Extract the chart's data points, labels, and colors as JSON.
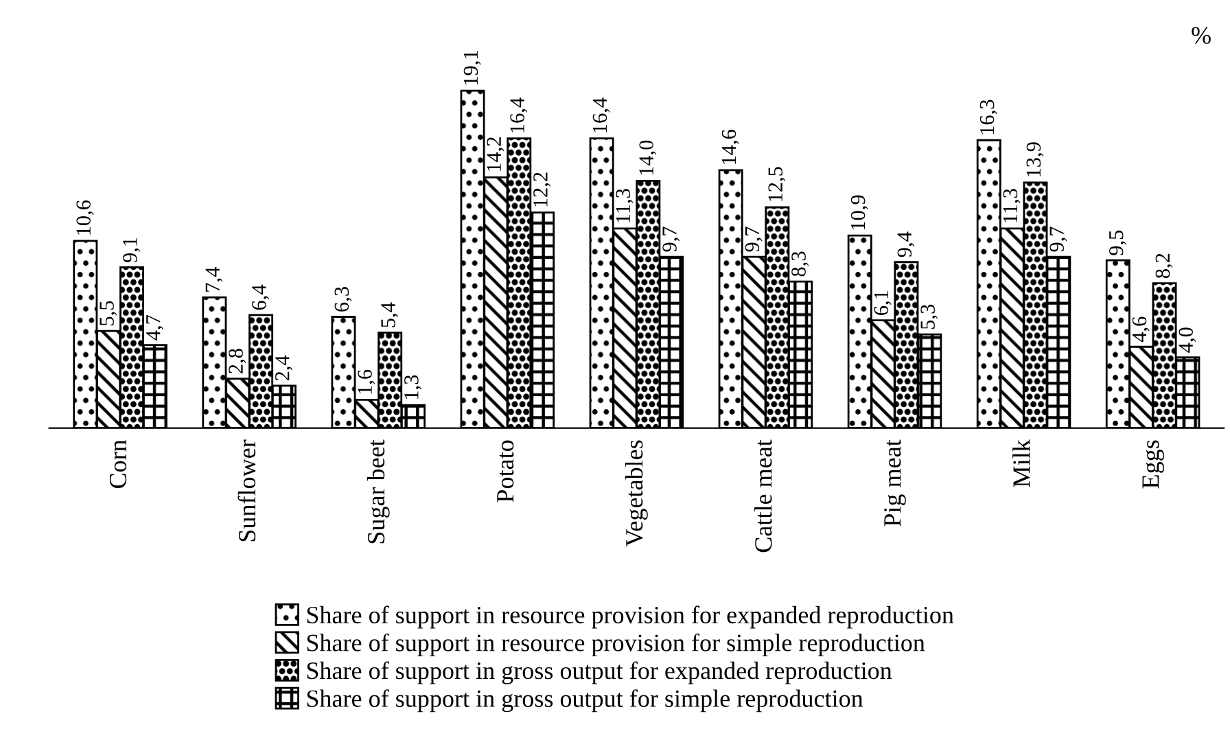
{
  "chart_data": {
    "type": "bar",
    "categories": [
      "Corn",
      "Sunflower",
      "Sugar beet",
      "Potato",
      "Vegetables",
      "Cattle meat",
      "Pig meat",
      "Milk",
      "Eggs"
    ],
    "series": [
      {
        "name": "Share of support in resource provision for expanded reproduction",
        "color": "#000000",
        "values": [
          10.6,
          7.4,
          6.3,
          19.1,
          16.4,
          14.6,
          10.9,
          16.3,
          9.5
        ],
        "value_labels": [
          "10,6",
          "7,4",
          "6,3",
          "19,1",
          "16,4",
          "14,6",
          "10,9",
          "16,3",
          "9,5"
        ]
      },
      {
        "name": "Share of support in resource provision for simple reproduction",
        "color": "#000000",
        "values": [
          5.5,
          2.8,
          1.6,
          14.2,
          11.3,
          9.7,
          6.1,
          11.3,
          4.6
        ],
        "value_labels": [
          "5,5",
          "2,8",
          "1,6",
          "14,2",
          "11,3",
          "9,7",
          "6,1",
          "11,3",
          "4,6"
        ]
      },
      {
        "name": "Share of support in gross output for expanded reproduction",
        "color": "#000000",
        "values": [
          9.1,
          6.4,
          5.4,
          16.4,
          14.0,
          12.5,
          9.4,
          13.9,
          8.2
        ],
        "value_labels": [
          "9,1",
          "6,4",
          "5,4",
          "16,4",
          "14,0",
          "12,5",
          "9,4",
          "13,9",
          "8,2"
        ]
      },
      {
        "name": "Share of support in gross output for simple reproduction",
        "color": "#000000",
        "values": [
          4.7,
          2.4,
          1.3,
          12.2,
          9.7,
          8.3,
          5.3,
          9.7,
          4.0
        ],
        "value_labels": [
          "4,7",
          "2,4",
          "1,3",
          "12,2",
          "9,7",
          "8,3",
          "5,3",
          "9,7",
          "4,0"
        ]
      }
    ],
    "annotations": [
      "%"
    ],
    "legend": "bottom",
    "grid": false
  }
}
